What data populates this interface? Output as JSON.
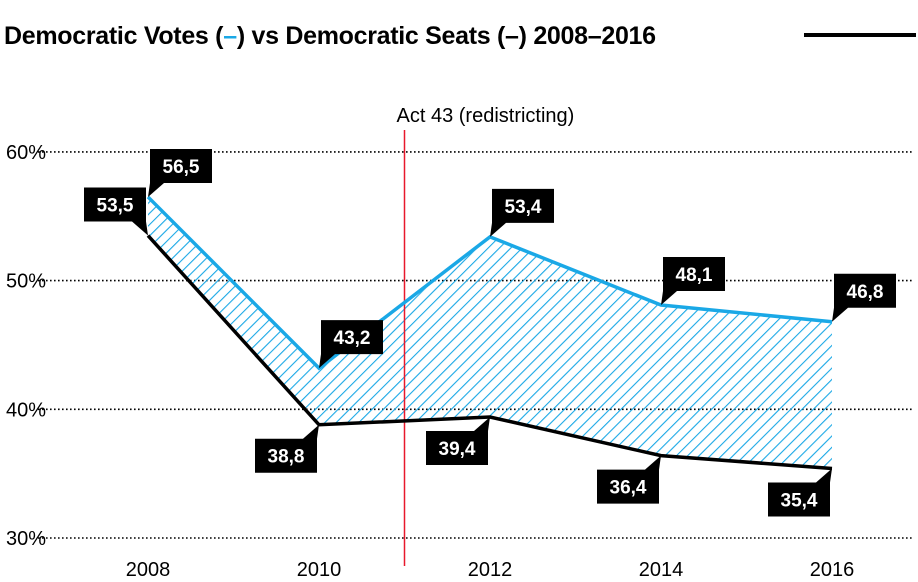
{
  "chart_data": {
    "type": "line",
    "title_parts": [
      "Democratic Votes (",
      "–",
      ") vs Democratic Seats (–) 2008–2016"
    ],
    "categories": [
      "2008",
      "2010",
      "2012",
      "2014",
      "2016"
    ],
    "series": [
      {
        "values": [
          56.5,
          43.2,
          53.4,
          48.1,
          46.8
        ],
        "labels": [
          "56,5",
          "43,2",
          "53,4",
          "48,1",
          "46,8"
        ],
        "color": "#1aa8e6"
      },
      {
        "values": [
          53.5,
          38.8,
          39.4,
          36.4,
          35.4
        ],
        "labels": [
          "53,5",
          "38,8",
          "39,4",
          "36,4",
          "35,4"
        ],
        "color": "#000000"
      }
    ],
    "yticks": [
      {
        "value": 30,
        "label": "30%"
      },
      {
        "value": 40,
        "label": "40%"
      },
      {
        "value": 50,
        "label": "50%"
      },
      {
        "value": 60,
        "label": "60%"
      }
    ],
    "ylim": [
      30,
      60
    ],
    "grid": true,
    "fill_between": "hatched",
    "annotation": {
      "x": 2011,
      "text": "Act 43 (redistricting)",
      "color": "#e8182c"
    }
  }
}
